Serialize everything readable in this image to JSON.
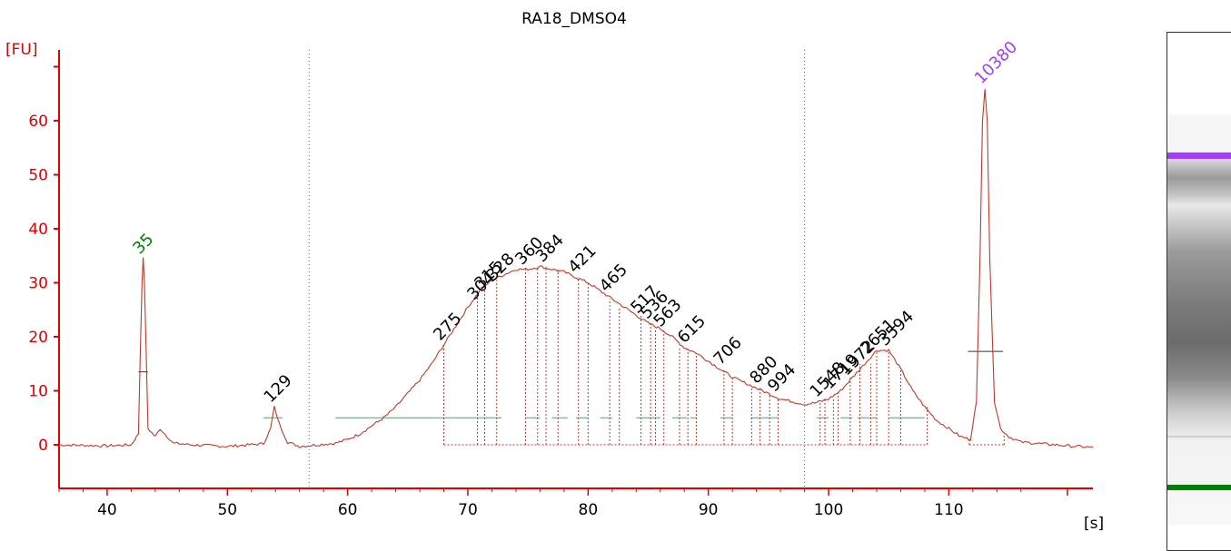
{
  "chart_data": {
    "type": "line",
    "title": "RA18_DMSO4",
    "ylabel": "[FU]",
    "xlabel": "[s]",
    "xlim": [
      36,
      116
    ],
    "ylim": [
      -8,
      73
    ],
    "x_ticks": [
      40,
      50,
      60,
      70,
      80,
      90,
      100,
      110
    ],
    "y_ticks": [
      0,
      10,
      20,
      30,
      40,
      50,
      60
    ],
    "grid": false,
    "colors": {
      "trace": "#c0392b",
      "axis": "#e00000",
      "lower_marker": "#008000",
      "upper_marker": "#a040f0",
      "baseline": "#5a9a7a"
    },
    "vertical_dotted_lines": [
      56.8,
      98
    ],
    "series": [
      {
        "points": [
          [
            36,
            0
          ],
          [
            40,
            -0.2
          ],
          [
            42,
            0
          ],
          [
            42.6,
            2
          ],
          [
            42.9,
            30
          ],
          [
            43.0,
            34.5
          ],
          [
            43.1,
            30
          ],
          [
            43.4,
            3
          ],
          [
            44,
            1.5
          ],
          [
            44.4,
            3
          ],
          [
            44.8,
            2
          ],
          [
            45.5,
            0.3
          ],
          [
            47,
            0
          ],
          [
            50,
            -0.3
          ],
          [
            53,
            0.2
          ],
          [
            53.6,
            3
          ],
          [
            53.9,
            7
          ],
          [
            54.3,
            4
          ],
          [
            55,
            0.5
          ],
          [
            56,
            -0.3
          ],
          [
            57.5,
            0
          ],
          [
            59,
            0.3
          ],
          [
            60,
            1
          ],
          [
            61,
            2
          ],
          [
            62,
            3.5
          ],
          [
            63,
            5
          ],
          [
            64,
            7
          ],
          [
            65,
            9.5
          ],
          [
            66,
            12
          ],
          [
            67,
            15
          ],
          [
            68,
            18.5
          ],
          [
            69,
            22
          ],
          [
            70,
            25.5
          ],
          [
            71,
            28.5
          ],
          [
            72,
            30.5
          ],
          [
            73,
            31.5
          ],
          [
            74,
            32.5
          ],
          [
            75,
            32.5
          ],
          [
            76,
            33
          ],
          [
            77,
            32.5
          ],
          [
            78,
            32
          ],
          [
            79,
            31
          ],
          [
            80,
            30
          ],
          [
            81,
            28.5
          ],
          [
            82,
            27
          ],
          [
            83,
            25.5
          ],
          [
            84,
            24
          ],
          [
            85,
            22.5
          ],
          [
            86,
            21.5
          ],
          [
            87,
            20
          ],
          [
            88,
            18
          ],
          [
            89,
            17
          ],
          [
            90,
            15.5
          ],
          [
            91,
            14
          ],
          [
            92,
            12.5
          ],
          [
            93,
            11.5
          ],
          [
            94,
            10.5
          ],
          [
            95,
            9.5
          ],
          [
            96,
            8.5
          ],
          [
            97,
            8
          ],
          [
            98,
            7.5
          ],
          [
            99,
            7.8
          ],
          [
            100,
            8.5
          ],
          [
            101,
            10
          ],
          [
            102,
            12.5
          ],
          [
            103,
            15
          ],
          [
            104,
            17.5
          ],
          [
            105,
            17.5
          ],
          [
            106,
            14
          ],
          [
            107,
            10
          ],
          [
            108,
            7
          ],
          [
            109,
            4.5
          ],
          [
            110,
            3
          ],
          [
            111,
            1.5
          ],
          [
            111.8,
            1
          ],
          [
            112.3,
            8
          ],
          [
            112.6,
            35
          ],
          [
            112.8,
            60
          ],
          [
            113.0,
            66
          ],
          [
            113.2,
            60
          ],
          [
            113.4,
            35
          ],
          [
            113.8,
            8
          ],
          [
            114.3,
            3
          ],
          [
            115,
            1.5
          ],
          [
            116,
            0.5
          ],
          [
            120,
            -0.2
          ],
          [
            122,
            -0.5
          ]
        ]
      }
    ],
    "peaks": [
      {
        "label": "35",
        "x": 43.0,
        "y": 34.5,
        "color": "#008000"
      },
      {
        "label": "129",
        "x": 53.9,
        "y": 7,
        "color": "#000000"
      },
      {
        "label": "275",
        "x": 68,
        "y": 18.5,
        "color": "#000000"
      },
      {
        "label": "304",
        "x": 70.8,
        "y": 26,
        "color": "#000000"
      },
      {
        "label": "315",
        "x": 71.4,
        "y": 28,
        "color": "#000000"
      },
      {
        "label": "328",
        "x": 72.4,
        "y": 29.5,
        "color": "#000000"
      },
      {
        "label": "360",
        "x": 74.8,
        "y": 32.5,
        "color": "#000000"
      },
      {
        "label": "384",
        "x": 76.5,
        "y": 33,
        "color": "#000000"
      },
      {
        "label": "421",
        "x": 79.2,
        "y": 31,
        "color": "#000000"
      },
      {
        "label": "465",
        "x": 81.8,
        "y": 27.5,
        "color": "#000000"
      },
      {
        "label": "517",
        "x": 84.4,
        "y": 23.5,
        "color": "#000000"
      },
      {
        "label": "536",
        "x": 85.2,
        "y": 22.5,
        "color": "#000000"
      },
      {
        "label": "563",
        "x": 86.3,
        "y": 21,
        "color": "#000000"
      },
      {
        "label": "615",
        "x": 88.3,
        "y": 18,
        "color": "#000000"
      },
      {
        "label": "706",
        "x": 91.3,
        "y": 14,
        "color": "#000000"
      },
      {
        "label": "880",
        "x": 94.3,
        "y": 10.5,
        "color": "#000000"
      },
      {
        "label": "994",
        "x": 95.8,
        "y": 9,
        "color": "#000000"
      },
      {
        "label": "1548",
        "x": 99.3,
        "y": 8,
        "color": "#000000"
      },
      {
        "label": "1719",
        "x": 100.4,
        "y": 9.5,
        "color": "#000000"
      },
      {
        "label": "1972",
        "x": 101.8,
        "y": 12,
        "color": "#000000"
      },
      {
        "label": "2651",
        "x": 103.5,
        "y": 16,
        "color": "#000000"
      },
      {
        "label": "3594",
        "x": 105.0,
        "y": 17.5,
        "color": "#000000"
      },
      {
        "label": "10380",
        "x": 113.0,
        "y": 66,
        "color": "#a040f0"
      }
    ]
  },
  "gel_bands": [
    {
      "name": "upper-marker",
      "color": "#a040f0"
    },
    {
      "name": "lower-marker",
      "color": "#008000"
    }
  ]
}
